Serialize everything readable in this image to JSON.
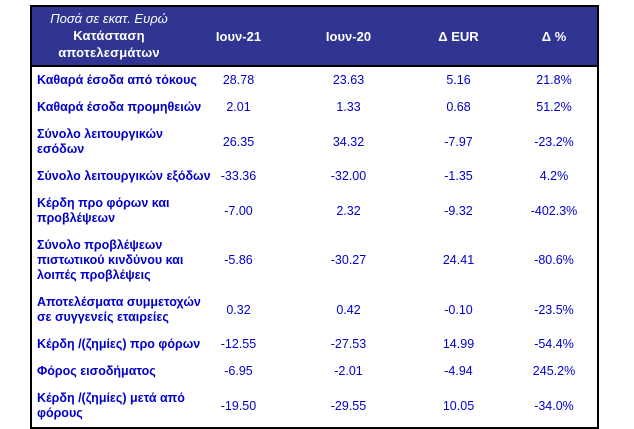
{
  "colors": {
    "header_bg": "#2F3590",
    "header_text": "#FFFFFF",
    "body_text": "#0000CC",
    "border": "#000000"
  },
  "header": {
    "unit_note": "Ποσά σε εκατ. Ευρώ",
    "title": "Κατάσταση  αποτελεσμάτων",
    "columns": [
      "Ιουν-21",
      "Ιουν-20",
      "Δ EUR",
      "Δ %"
    ]
  },
  "rows": [
    {
      "label": "Καθαρά έσοδα από τόκους",
      "values": [
        "28.78",
        "23.63",
        "5.16",
        "21.8%"
      ]
    },
    {
      "label": "Καθαρά έσοδα προμηθειών",
      "values": [
        "2.01",
        "1.33",
        "0.68",
        "51.2%"
      ]
    },
    {
      "label": "Σύνολο λειτουργικών\nεσόδων",
      "values": [
        "26.35",
        "34.32",
        "-7.97",
        "-23.2%"
      ]
    },
    {
      "label": "Σύνολο λειτουργικών εξόδων",
      "values": [
        "-33.36",
        "-32.00",
        "-1.35",
        "4.2%"
      ]
    },
    {
      "label": "Κέρδη προ φόρων και\nπροβλέψεων",
      "values": [
        "-7.00",
        "2.32",
        "-9.32",
        "-402.3%"
      ]
    },
    {
      "label": "Σύνολο προβλέψεων\nπιστωτικού κινδύνου και\nλοιπές προβλέψεις",
      "values": [
        "-5.86",
        "-30.27",
        "24.41",
        "-80.6%"
      ]
    },
    {
      "label": "Αποτελέσματα συμμετοχών\nσε συγγενείς εταιρείες",
      "values": [
        "0.32",
        "0.42",
        "-0.10",
        "-23.5%"
      ]
    },
    {
      "label": "Κέρδη /(ζημίες) προ φόρων",
      "values": [
        "-12.55",
        "-27.53",
        "14.99",
        "-54.4%"
      ]
    },
    {
      "label": "Φόρος εισοδήματος",
      "values": [
        "-6.95",
        "-2.01",
        "-4.94",
        "245.2%"
      ]
    },
    {
      "label": "Κέρδη /(ζημίες) μετά από\nφόρους",
      "values": [
        "-19.50",
        "-29.55",
        "10.05",
        "-34.0%"
      ]
    }
  ]
}
